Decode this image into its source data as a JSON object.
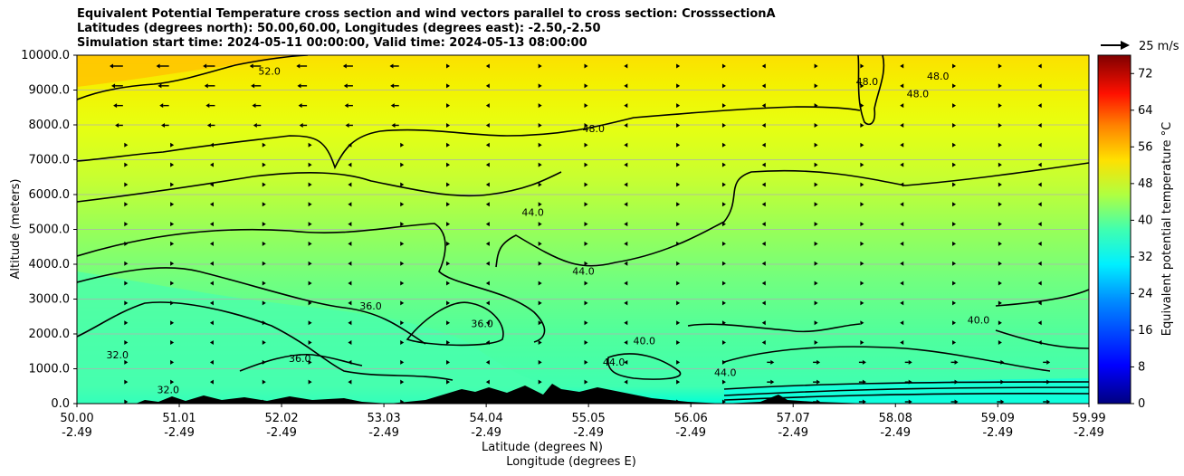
{
  "chart_data": {
    "type": "heatmap",
    "title_lines": [
      "Equivalent Potential Temperature cross section and wind vectors parallel to cross section: CrosssectionA",
      "Latitudes (degrees north): 50.00,60.00, Longitudes (degrees east): -2.50,-2.50",
      "Simulation start time: 2024-05-11 00:00:00, Valid time: 2024-05-13 08:00:00"
    ],
    "ylabel": "Altitude (meters)",
    "xlabel": "Latitude (degrees N)",
    "xlabel2": "Longitude (degrees E)",
    "ylim": [
      0,
      10000
    ],
    "yticks": [
      "0.0",
      "1000.0",
      "2000.0",
      "3000.0",
      "4000.0",
      "5000.0",
      "6000.0",
      "7000.0",
      "8000.0",
      "9000.0",
      "10000.0"
    ],
    "xticks_lat": [
      "50.00",
      "51.01",
      "52.02",
      "53.03",
      "54.04",
      "55.05",
      "56.06",
      "57.07",
      "58.08",
      "59.09",
      "59.99"
    ],
    "xticks_lon": [
      "-2.49",
      "-2.49",
      "-2.49",
      "-2.49",
      "-2.49",
      "-2.49",
      "-2.49",
      "-2.49",
      "-2.49",
      "-2.49",
      "-2.49"
    ],
    "grid": "horizontal",
    "colorbar": {
      "label": "Equivalent potential temperature $^\\circ$C",
      "label_display": "Equivalent potential temperature °C",
      "min": 0,
      "max": 76,
      "ticks": [
        0,
        8,
        16,
        24,
        32,
        40,
        48,
        56,
        64,
        72
      ]
    },
    "vector_key": {
      "label": "25 m/s",
      "speed": 25
    },
    "contour_labels": [
      {
        "text": "52.0",
        "x": 51.9,
        "y": 9550
      },
      {
        "text": "48.0",
        "x": 55.1,
        "y": 7900
      },
      {
        "text": "48.0",
        "x": 57.8,
        "y": 9250
      },
      {
        "text": "48.0",
        "x": 58.5,
        "y": 9400
      },
      {
        "text": "48.0",
        "x": 58.3,
        "y": 8900
      },
      {
        "text": "44.0",
        "x": 54.5,
        "y": 5500
      },
      {
        "text": "44.0",
        "x": 55.0,
        "y": 3800
      },
      {
        "text": "44.0",
        "x": 55.3,
        "y": 1200
      },
      {
        "text": "44.0",
        "x": 56.4,
        "y": 900
      },
      {
        "text": "40.0",
        "x": 55.6,
        "y": 1800
      },
      {
        "text": "40.0",
        "x": 58.9,
        "y": 2400
      },
      {
        "text": "36.0",
        "x": 52.9,
        "y": 2800
      },
      {
        "text": "36.0",
        "x": 54.0,
        "y": 2300
      },
      {
        "text": "36.0",
        "x": 52.2,
        "y": 1300
      },
      {
        "text": "32.0",
        "x": 50.4,
        "y": 1400
      },
      {
        "text": "32.0",
        "x": 50.9,
        "y": 400
      }
    ]
  }
}
